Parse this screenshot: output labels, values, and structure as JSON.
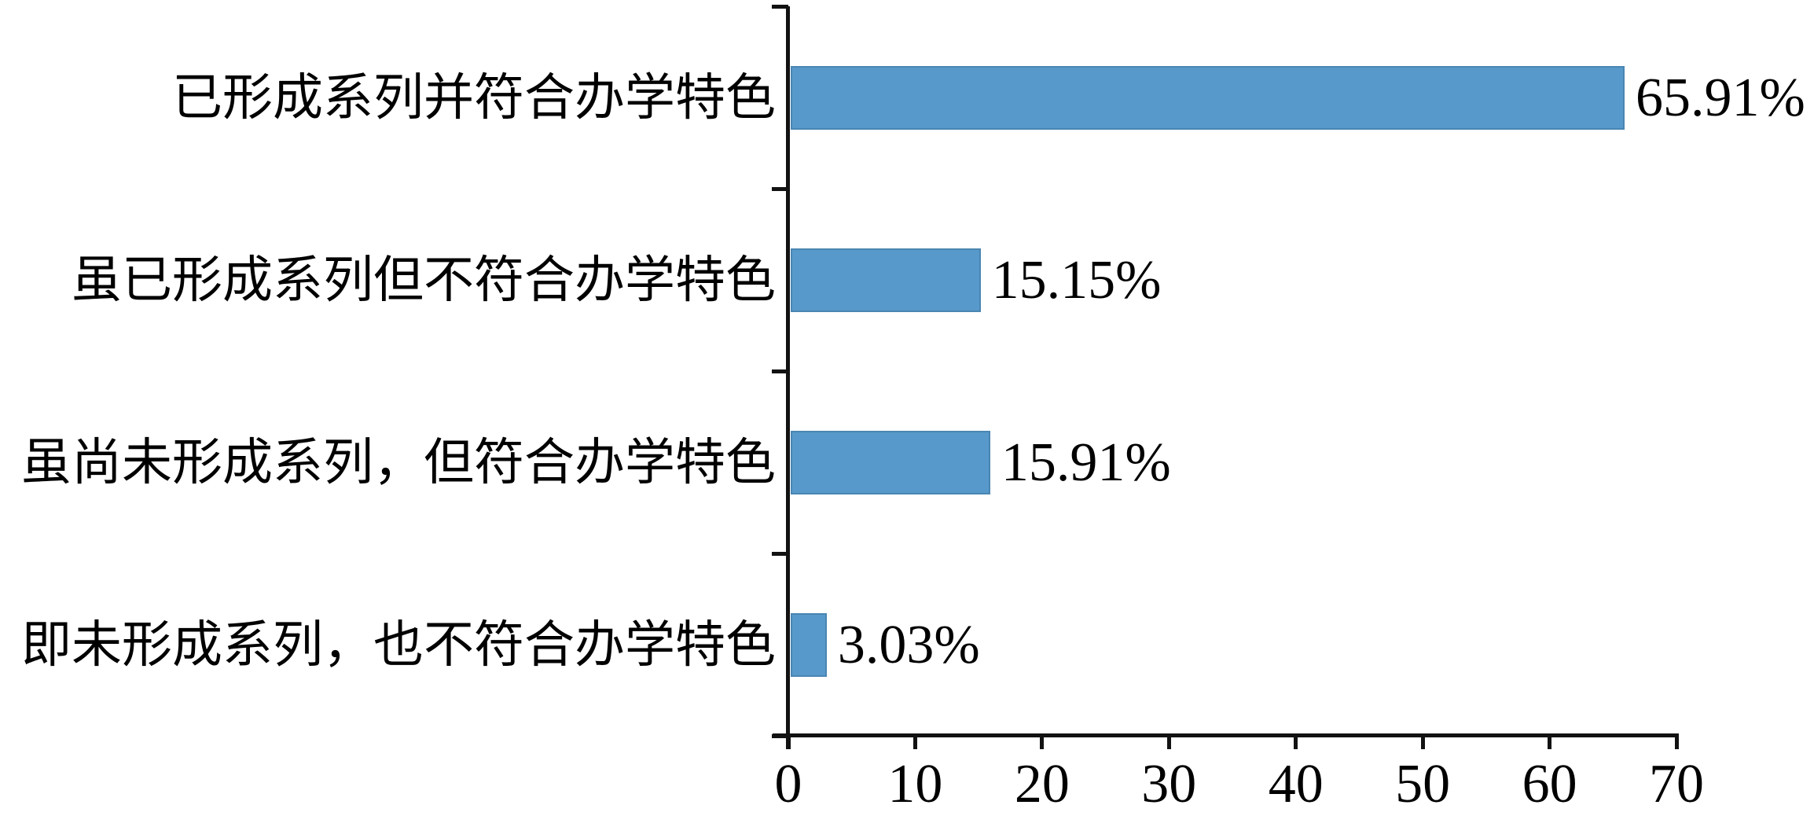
{
  "chart_data": {
    "type": "bar",
    "orientation": "horizontal",
    "title": "",
    "categories": [
      "已形成系列并符合办学特色",
      "虽已形成系列但不符合办学特色",
      "虽尚未形成系列，但符合办学特色",
      "即未形成系列，也不符合办学特色"
    ],
    "values": [
      65.91,
      15.15,
      15.91,
      3.03
    ],
    "value_labels": [
      "65.91%",
      "15.15%",
      "15.91%",
      "3.03%"
    ],
    "x_ticks": [
      0,
      10,
      20,
      30,
      40,
      50,
      60,
      70
    ],
    "x_tick_labels": [
      "0",
      "10",
      "20",
      "30",
      "40",
      "50",
      "60",
      "70"
    ],
    "xlim": [
      0,
      70
    ],
    "grid": false,
    "legend": false,
    "colors": {
      "bar": "#5799CA",
      "bar_border": "#4A86B2",
      "axis": "#121212",
      "text": "#000000",
      "background": "#FFFFFF"
    }
  }
}
